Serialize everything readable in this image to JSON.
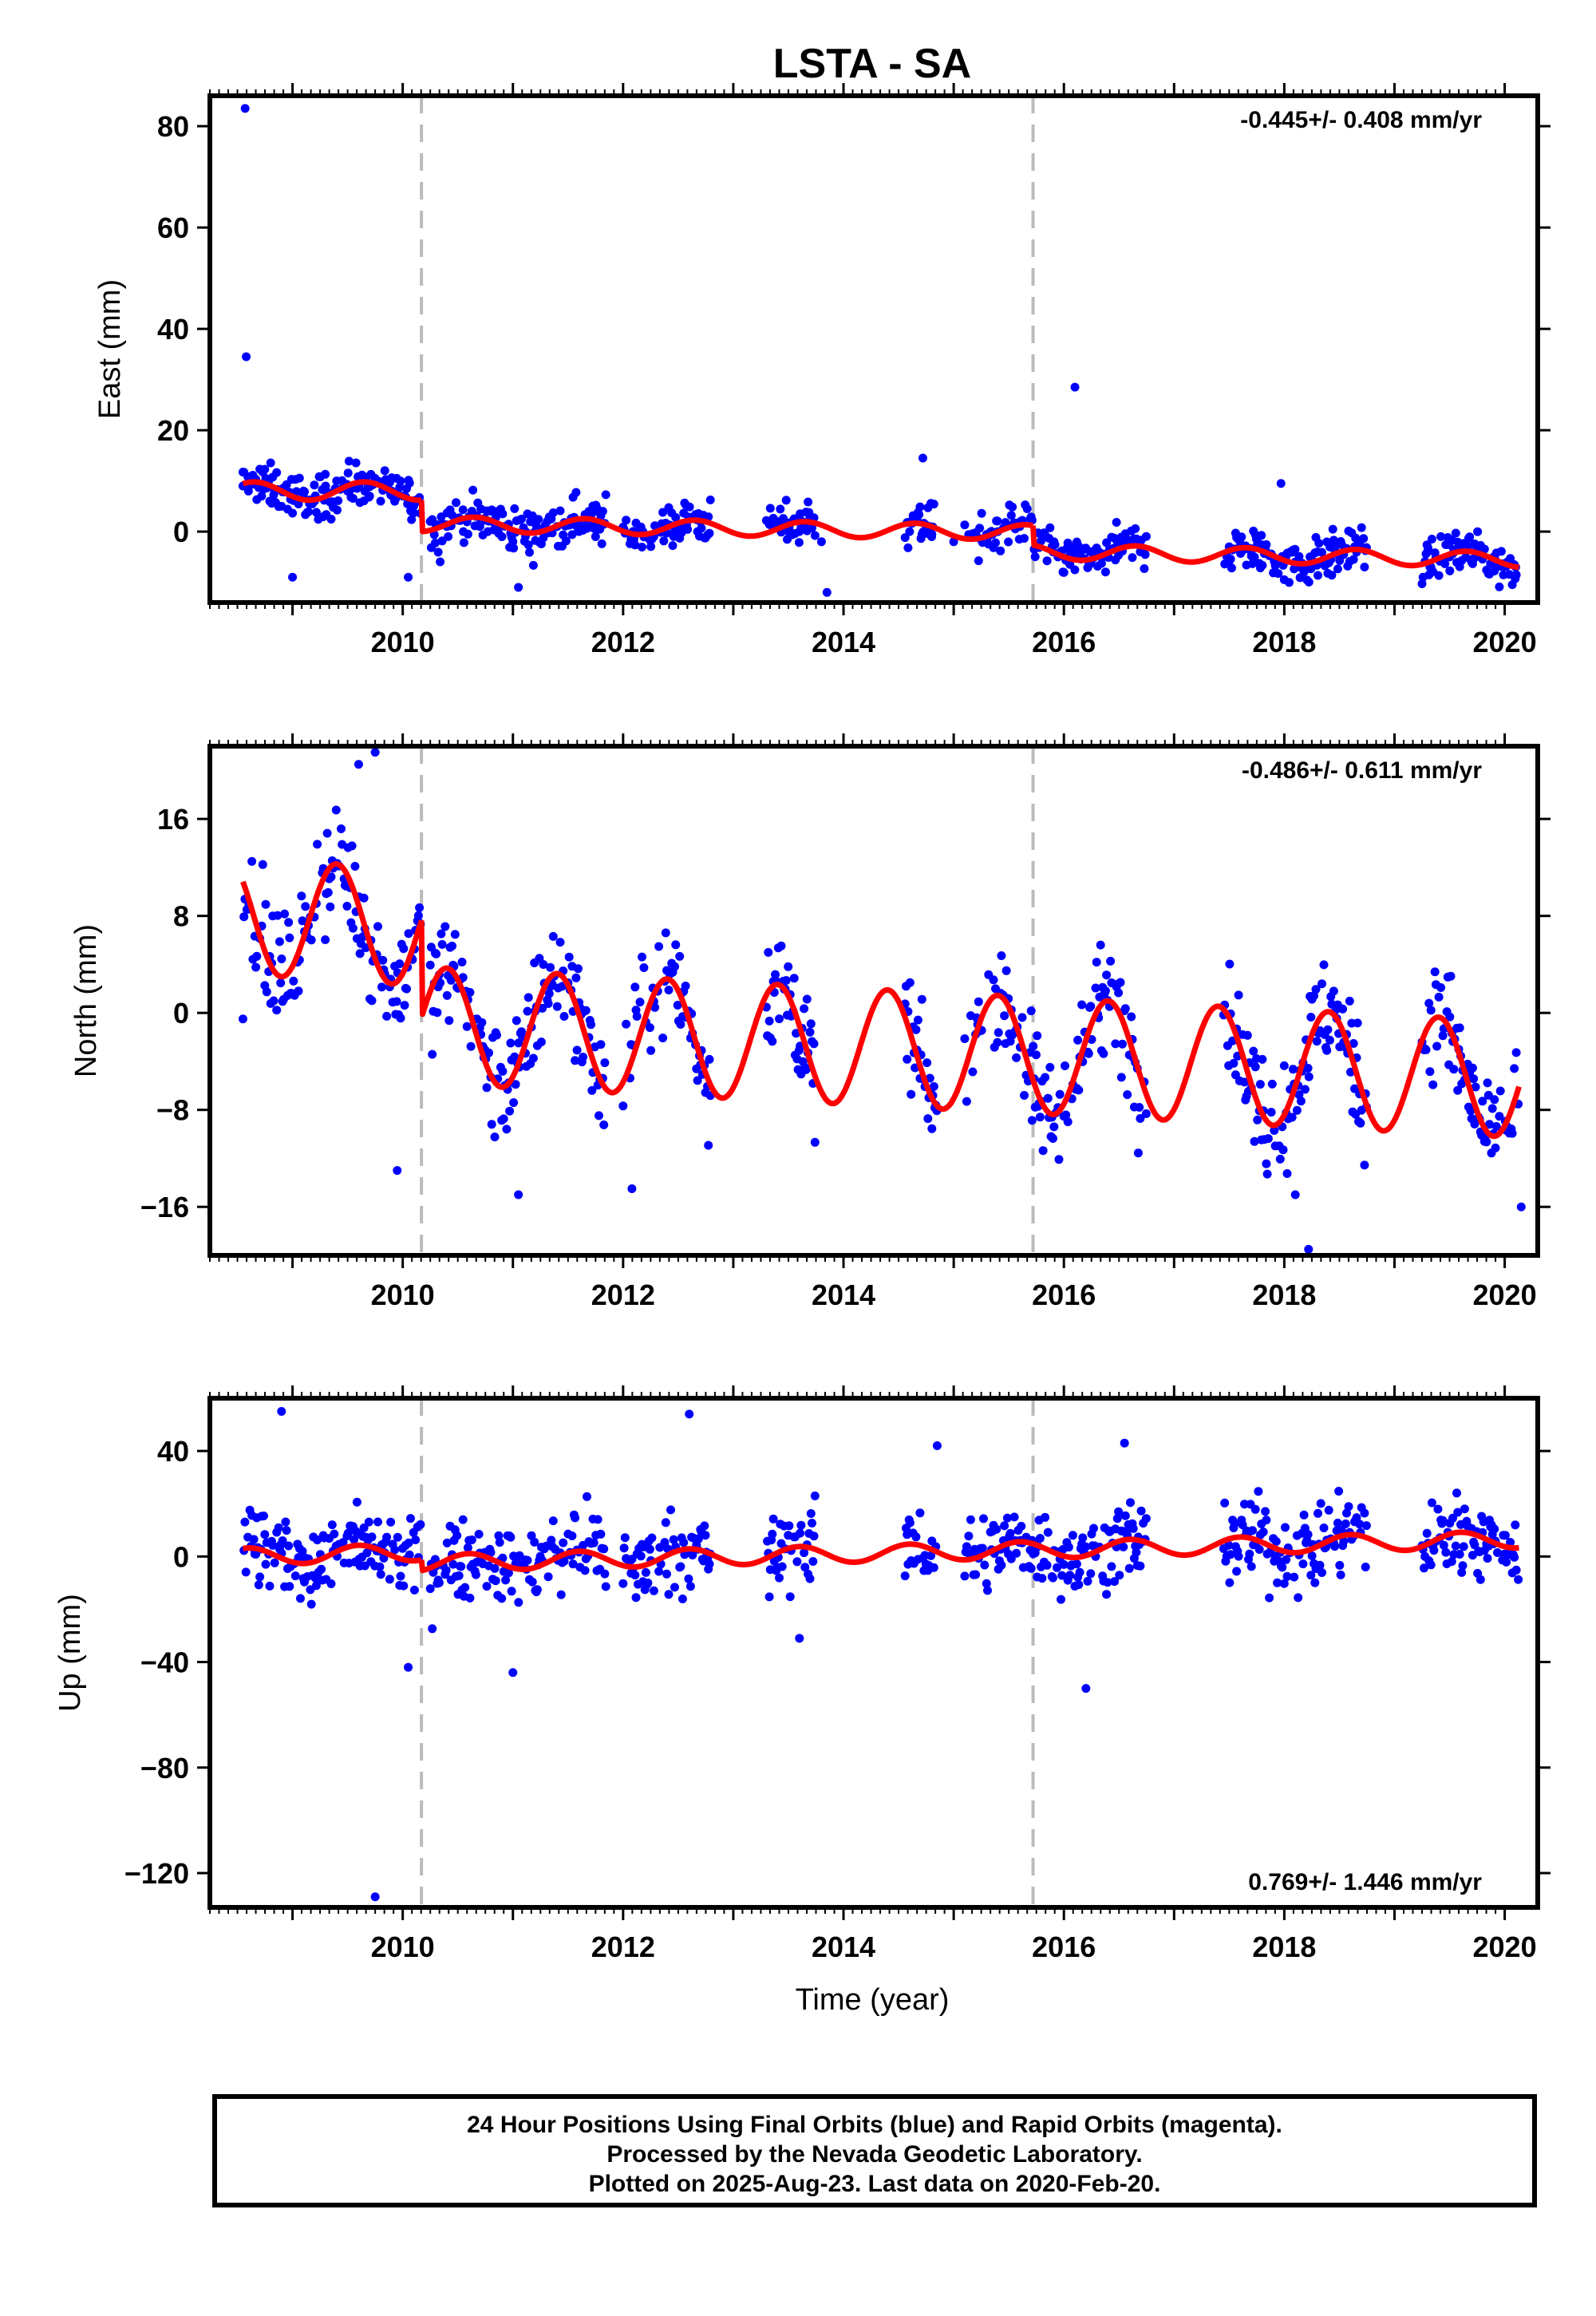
{
  "chart_data": {
    "title": "LSTA - SA",
    "xlabel": "Time (year)",
    "xlim": [
      2008.25,
      2020.3
    ],
    "x_ticks": [
      2010,
      2012,
      2014,
      2016,
      2018,
      2020
    ],
    "event_lines_x": [
      2010.17,
      2015.72
    ],
    "colors": {
      "final_orbits": "#0000ff",
      "rapid_orbits": "#ff00ff",
      "model": "#ff0000",
      "event_line": "#bbbbbb"
    },
    "panels": [
      {
        "type": "scatter",
        "ylabel": "East (mm)",
        "ylim": [
          -14,
          86
        ],
        "y_ticks": [
          0,
          20,
          40,
          60,
          80
        ],
        "y_tick_labels": [
          "0",
          "20",
          "40",
          "60",
          "80"
        ],
        "rate": "-0.445+/- 0.408 mm/yr",
        "rate_position": "top-right",
        "series": [
          {
            "values_x": [
              2008.55,
              2008.6,
              2008.65,
              2008.72,
              2008.8,
              2008.9,
              2009.0,
              2009.1,
              2009.2,
              2009.3,
              2009.4,
              2009.5,
              2009.6,
              2009.7,
              2009.8,
              2009.9,
              2010.0,
              2010.1,
              2010.25,
              2010.4,
              2010.55,
              2010.7,
              2010.9,
              2011.0,
              2011.2,
              2011.4,
              2011.6,
              2011.75,
              2012.1,
              2012.3,
              2012.5,
              2012.7,
              2013.4,
              2013.6,
              2013.8,
              2014.6,
              2014.8,
              2015.0,
              2015.2,
              2015.4,
              2015.6,
              2015.9,
              2016.1,
              2016.3,
              2016.5,
              2016.7,
              2017.5,
              2017.7,
              2017.9,
              2018.1,
              2018.3,
              2018.5,
              2018.7,
              2019.3,
              2019.5,
              2019.7,
              2019.9,
              2020.1
            ],
            "values_y": [
              9,
              8,
              10,
              7,
              6,
              5,
              7,
              8,
              6,
              9,
              10,
              8,
              9,
              7,
              6,
              8,
              7,
              5,
              2,
              1,
              0,
              1,
              -1,
              -2,
              0,
              1,
              0,
              -1,
              0,
              1,
              0,
              2,
              1,
              0,
              -2,
              0,
              -1,
              -2,
              -1,
              0,
              1,
              -4,
              -3,
              -4,
              -2,
              -3,
              -3,
              -4,
              -5,
              -6,
              -4,
              -5,
              -3,
              -4,
              -5,
              -6,
              -5,
              -7
            ]
          },
          {
            "outliers_x": [
              2008.57,
              2008.58,
              2016.1,
              2017.97,
              2014.72,
              2009.0,
              2011.05,
              2013.85,
              2010.05
            ],
            "outliers_y": [
              83.5,
              34.5,
              28.5,
              9.5,
              14.5,
              -9,
              -11,
              -12,
              -9
            ]
          }
        ],
        "model_breaks_at": [
          2010.17,
          2015.72
        ],
        "model_segments": [
          {
            "x0": 2008.55,
            "x1": 2010.17,
            "offset": 8,
            "trend": 0,
            "amp": 1.8,
            "phase": 0.4
          },
          {
            "x0": 2010.17,
            "x1": 2015.72,
            "offset": 1.5,
            "trend": -0.3,
            "amp": 1.5,
            "phase": 0.4
          },
          {
            "x0": 2015.72,
            "x1": 2020.13,
            "offset": -4,
            "trend": -0.35,
            "amp": 1.5,
            "phase": 0.4
          }
        ]
      },
      {
        "type": "scatter",
        "ylabel": "North (mm)",
        "ylim": [
          -20,
          22
        ],
        "y_ticks": [
          -16,
          -8,
          0,
          8,
          16
        ],
        "y_tick_labels": [
          "−16",
          "−8",
          "0",
          "8",
          "16"
        ],
        "rate": "-0.486+/- 0.611 mm/yr",
        "rate_position": "top-right",
        "series": [
          {
            "outliers_x": [
              2008.55,
              2009.95,
              2011.05,
              2012.08,
              2018.22,
              2018.1,
              2020.15,
              2009.6,
              2009.75
            ],
            "outliers_y": [
              -0.5,
              -13,
              -15,
              -14.5,
              -19.5,
              -15,
              -16,
              20.5,
              21.5
            ]
          }
        ],
        "model_breaks_at": [
          2010.17
        ],
        "model_segments": [
          {
            "x0": 2008.55,
            "x1": 2010.17,
            "offset": 8,
            "trend": -0.6,
            "amp": 4.8,
            "phase": 0.15
          },
          {
            "x0": 2010.17,
            "x1": 2020.13,
            "offset": -1.0,
            "trend": -0.45,
            "amp": 4.8,
            "phase": 0.15
          }
        ]
      },
      {
        "type": "scatter",
        "ylabel": "Up (mm)",
        "ylim": [
          -133,
          60
        ],
        "y_ticks": [
          -120,
          -80,
          -40,
          0,
          40
        ],
        "y_tick_labels": [
          "−120",
          "−80",
          "−40",
          "0",
          "40"
        ],
        "rate": "0.769+/- 1.446 mm/yr",
        "rate_position": "bottom-right",
        "series": [
          {
            "outliers_x": [
              2008.9,
              2012.6,
              2014.85,
              2016.55,
              2016.2,
              2011.0,
              2010.05,
              2009.75,
              2013.6
            ],
            "outliers_y": [
              55,
              54,
              42,
              43,
              -50,
              -44,
              -42,
              -129,
              -31
            ]
          }
        ],
        "model_breaks_at": [
          2010.17
        ],
        "model_segments": [
          {
            "x0": 2008.55,
            "x1": 2010.17,
            "offset": 0,
            "trend": 1.0,
            "amp": 3.2,
            "phase": 0.35
          },
          {
            "x0": 2010.17,
            "x1": 2020.13,
            "offset": -2.5,
            "trend": 0.9,
            "amp": 3.2,
            "phase": 0.35
          }
        ]
      }
    ]
  },
  "footer": {
    "line1": "24 Hour Positions Using Final Orbits (blue) and Rapid Orbits (magenta).",
    "line2": "Processed by the Nevada Geodetic Laboratory.",
    "line3": "Plotted on 2025-Aug-23. Last data on 2020-Feb-20."
  }
}
